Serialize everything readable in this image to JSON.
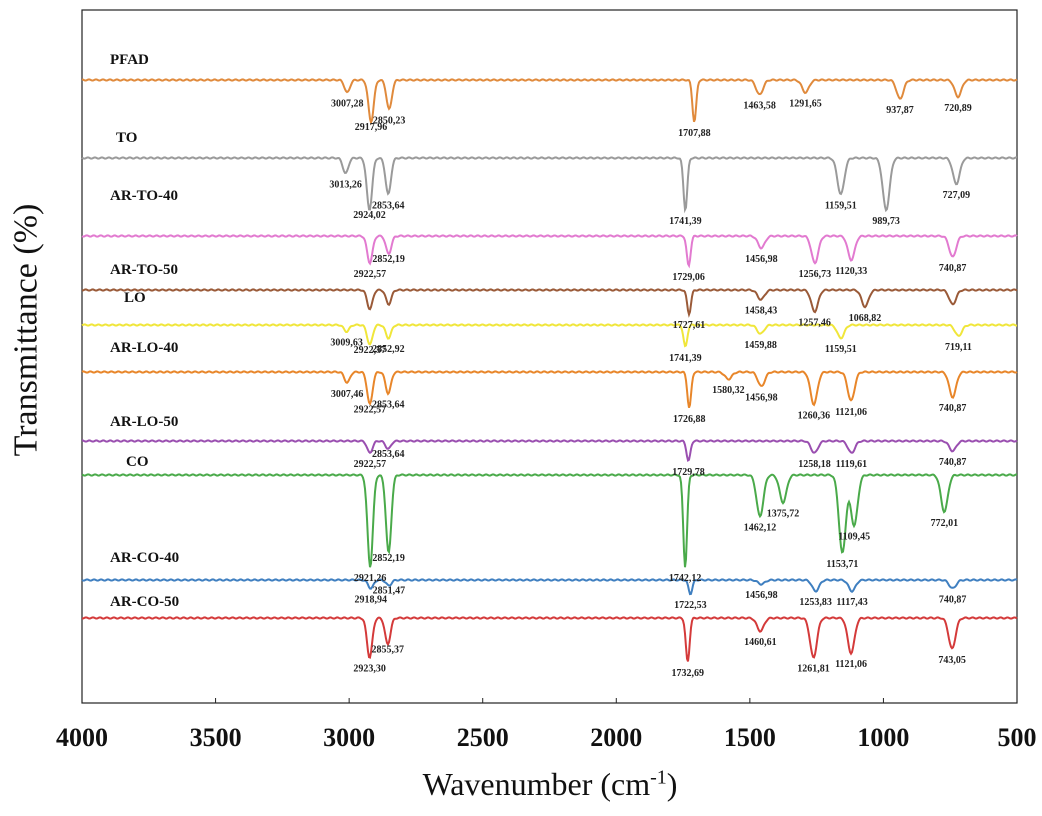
{
  "chart_data": {
    "type": "line",
    "xlabel": "Wavenumber (cm-1)",
    "xlabel_main": "Wavenumber (cm",
    "xlabel_sup": "-1",
    "xlabel_close": ")",
    "ylabel": "Transmittance (%)",
    "xlim": [
      4000,
      500
    ],
    "x_reversed": true,
    "x_ticks": [
      4000,
      3500,
      3000,
      2500,
      2000,
      1500,
      1000,
      500
    ],
    "grid": false,
    "series": [
      {
        "name": "PFAD",
        "color": "#e08a3c",
        "peaks": [
          {
            "x": 3007.28,
            "label": "3007,28",
            "depth": 0.3
          },
          {
            "x": 2917.96,
            "label": "2917,96",
            "depth": 1.0
          },
          {
            "x": 2850.23,
            "label": "2850,23",
            "depth": 0.7
          },
          {
            "x": 1707.88,
            "label": "1707,88",
            "depth": 1.0
          },
          {
            "x": 1463.58,
            "label": "1463,58",
            "depth": 0.35
          },
          {
            "x": 1291.65,
            "label": "1291,65",
            "depth": 0.3
          },
          {
            "x": 937.87,
            "label": "937,87",
            "depth": 0.45
          },
          {
            "x": 720.89,
            "label": "720,89",
            "depth": 0.4
          }
        ]
      },
      {
        "name": "TO",
        "color": "#9a9a9a",
        "peaks": [
          {
            "x": 3013.26,
            "label": "3013,26",
            "depth": 0.3
          },
          {
            "x": 2924.02,
            "label": "2924,02",
            "depth": 1.0
          },
          {
            "x": 2853.64,
            "label": "2853,64",
            "depth": 0.7
          },
          {
            "x": 1741.39,
            "label": "1741,39",
            "depth": 1.0
          },
          {
            "x": 1159.51,
            "label": "1159,51",
            "depth": 0.7
          },
          {
            "x": 989.73,
            "label": "989,73",
            "depth": 1.0
          },
          {
            "x": 727.09,
            "label": "727,09",
            "depth": 0.5
          }
        ]
      },
      {
        "name": "AR-TO-40",
        "color": "#e27ad0",
        "peaks": [
          {
            "x": 2922.57,
            "label": "2922,57",
            "depth": 0.9
          },
          {
            "x": 2852.19,
            "label": "2852,19",
            "depth": 0.6
          },
          {
            "x": 1729.06,
            "label": "1729,06",
            "depth": 1.0
          },
          {
            "x": 1456.98,
            "label": "1456,98",
            "depth": 0.4
          },
          {
            "x": 1256.73,
            "label": "1256,73",
            "depth": 0.9
          },
          {
            "x": 1120.33,
            "label": "1120,33",
            "depth": 0.8
          },
          {
            "x": 740.87,
            "label": "740,87",
            "depth": 0.7
          }
        ]
      },
      {
        "name": "AR-TO-50",
        "color": "#9a5a38",
        "peaks": [
          {
            "x": 2922.57,
            "label": "",
            "depth": 0.8
          },
          {
            "x": 2852.19,
            "label": "",
            "depth": 0.6
          },
          {
            "x": 1727.61,
            "label": "1727,61",
            "depth": 1.0
          },
          {
            "x": 1458.43,
            "label": "1458,43",
            "depth": 0.4
          },
          {
            "x": 1257.46,
            "label": "1257,46",
            "depth": 0.9
          },
          {
            "x": 1068.82,
            "label": "1068,82",
            "depth": 0.7
          },
          {
            "x": 740.87,
            "label": "",
            "depth": 0.6
          }
        ]
      },
      {
        "name": "LO",
        "color": "#f0e63a",
        "peaks": [
          {
            "x": 3009.63,
            "label": "3009,63",
            "depth": 0.3
          },
          {
            "x": 2922.57,
            "label": "2922,57",
            "depth": 0.9
          },
          {
            "x": 2852.92,
            "label": "2852,92",
            "depth": 0.6
          },
          {
            "x": 1741.39,
            "label": "1741,39",
            "depth": 1.0
          },
          {
            "x": 1459.88,
            "label": "1459,88",
            "depth": 0.4
          },
          {
            "x": 1159.51,
            "label": "1159,51",
            "depth": 0.6
          },
          {
            "x": 719.11,
            "label": "719,11",
            "depth": 0.5
          }
        ]
      },
      {
        "name": "AR-LO-40",
        "color": "#e8862a",
        "peaks": [
          {
            "x": 3007.46,
            "label": "3007,46",
            "depth": 0.3
          },
          {
            "x": 2922.57,
            "label": "2922,57",
            "depth": 0.9
          },
          {
            "x": 2853.64,
            "label": "2853,64",
            "depth": 0.6
          },
          {
            "x": 1726.88,
            "label": "1726,88",
            "depth": 1.0
          },
          {
            "x": 1580.32,
            "label": "1580,32",
            "depth": 0.2
          },
          {
            "x": 1456.98,
            "label": "1456,98",
            "depth": 0.4
          },
          {
            "x": 1260.36,
            "label": "1260,36",
            "depth": 0.9
          },
          {
            "x": 1121.06,
            "label": "1121,06",
            "depth": 0.8
          },
          {
            "x": 740.87,
            "label": "740,87",
            "depth": 0.7
          }
        ]
      },
      {
        "name": "AR-LO-50",
        "color": "#9a4fb0",
        "peaks": [
          {
            "x": 2922.57,
            "label": "2922,57",
            "depth": 0.6
          },
          {
            "x": 2853.64,
            "label": "2853,64",
            "depth": 0.4
          },
          {
            "x": 1729.78,
            "label": "1729,78",
            "depth": 1.0
          },
          {
            "x": 1258.18,
            "label": "1258,18",
            "depth": 0.6
          },
          {
            "x": 1119.61,
            "label": "1119,61",
            "depth": 0.6
          },
          {
            "x": 740.87,
            "label": "740,87",
            "depth": 0.5
          }
        ]
      },
      {
        "name": "CO",
        "color": "#4aaa4a",
        "peaks": [
          {
            "x": 2921.26,
            "label": "2921,26",
            "depth": 1.0
          },
          {
            "x": 2852.19,
            "label": "2852,19",
            "depth": 0.85
          },
          {
            "x": 1742.12,
            "label": "1742,12",
            "depth": 1.0
          },
          {
            "x": 1462.12,
            "label": "1462,12",
            "depth": 0.45
          },
          {
            "x": 1375.72,
            "label": "1375,72",
            "depth": 0.3
          },
          {
            "x": 1153.71,
            "label": "1153,71",
            "depth": 0.85
          },
          {
            "x": 1109.45,
            "label": "1109,45",
            "depth": 0.55
          },
          {
            "x": 772.01,
            "label": "772,01",
            "depth": 0.4
          }
        ]
      },
      {
        "name": "AR-CO-40",
        "color": "#3f7fc0",
        "peaks": [
          {
            "x": 2918.94,
            "label": "2918,94",
            "depth": 0.6
          },
          {
            "x": 2851.47,
            "label": "2851,47",
            "depth": 0.4
          },
          {
            "x": 1722.53,
            "label": "1722,53",
            "depth": 1.0
          },
          {
            "x": 1456.98,
            "label": "1456,98",
            "depth": 0.3
          },
          {
            "x": 1253.83,
            "label": "1253,83",
            "depth": 0.8
          },
          {
            "x": 1117.43,
            "label": "1117,43",
            "depth": 0.8
          },
          {
            "x": 740.87,
            "label": "740,87",
            "depth": 0.6
          }
        ]
      },
      {
        "name": "AR-CO-50",
        "color": "#d43a3a",
        "peaks": [
          {
            "x": 2923.3,
            "label": "2923,30",
            "depth": 0.9
          },
          {
            "x": 2855.37,
            "label": "2855,37",
            "depth": 0.6
          },
          {
            "x": 1732.69,
            "label": "1732,69",
            "depth": 1.0
          },
          {
            "x": 1460.61,
            "label": "1460,61",
            "depth": 0.3
          },
          {
            "x": 1261.81,
            "label": "1261,81",
            "depth": 0.9
          },
          {
            "x": 1121.06,
            "label": "1121,06",
            "depth": 0.8
          },
          {
            "x": 743.05,
            "label": "743,05",
            "depth": 0.7
          }
        ]
      }
    ]
  }
}
